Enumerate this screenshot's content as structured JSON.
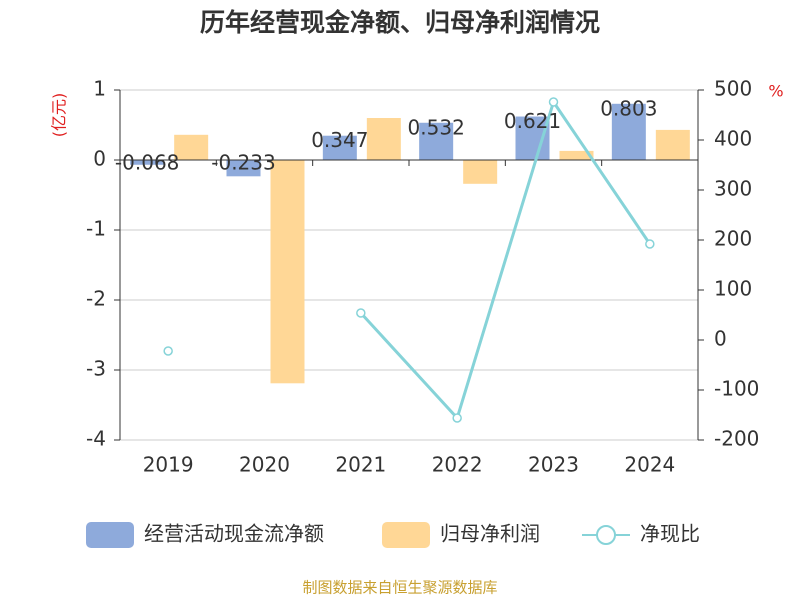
{
  "chart_data": {
    "type": "bar-line",
    "title": "历年经营现金净额、归母净利润情况",
    "y_label": "(亿元)",
    "y2_label": "%",
    "categories": [
      "2019",
      "2020",
      "2021",
      "2022",
      "2023",
      "2024"
    ],
    "series": [
      {
        "name": "经营活动现金流净额",
        "type": "bar",
        "color": "#8eaadb",
        "values": [
          -0.068,
          -0.233,
          0.347,
          0.532,
          0.621,
          0.803
        ]
      },
      {
        "name": "归母净利润",
        "type": "bar",
        "color": "#ffd796",
        "values": [
          0.36,
          -3.19,
          0.6,
          -0.34,
          0.13,
          0.43
        ]
      },
      {
        "name": "净现比",
        "type": "line",
        "axis": "y2",
        "color": "#86d3d8",
        "values": [
          -22,
          null,
          54,
          -156,
          476,
          192
        ]
      }
    ],
    "ylim": [
      -4,
      1
    ],
    "yticks": [
      -4,
      -3,
      -2,
      -1,
      0,
      1
    ],
    "y2lim": [
      -200,
      500
    ],
    "y2ticks": [
      -200,
      -100,
      0,
      100,
      200,
      300,
      400,
      500
    ],
    "grid": true,
    "source": "制图数据来自恒生聚源数据库"
  }
}
